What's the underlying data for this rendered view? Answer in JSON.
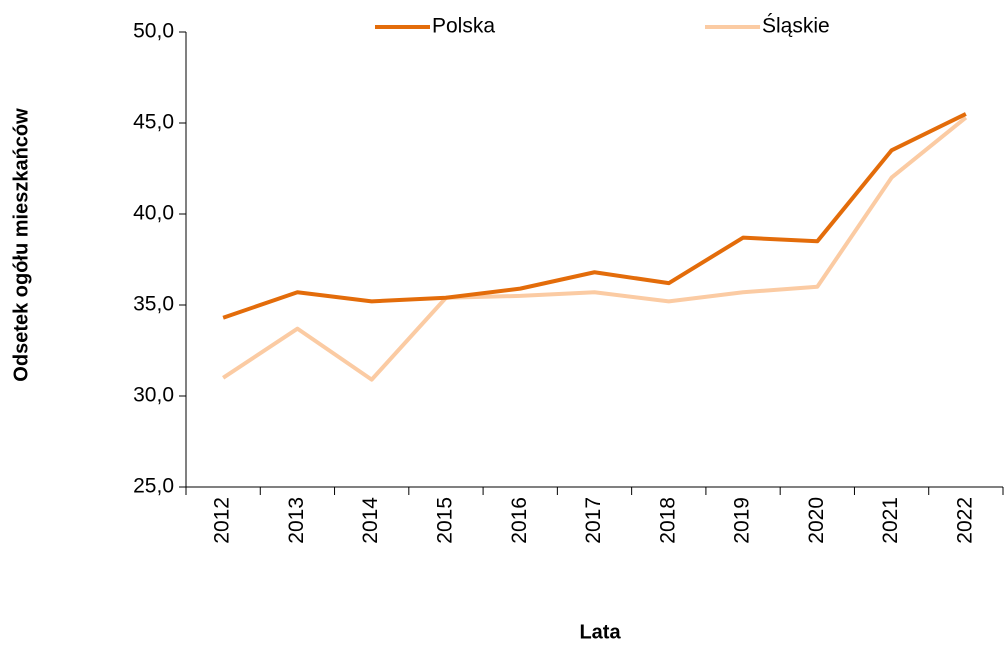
{
  "chart_data": {
    "type": "line",
    "categories": [
      "2012",
      "2013",
      "2014",
      "2015",
      "2016",
      "2017",
      "2018",
      "2019",
      "2020",
      "2021",
      "2022"
    ],
    "series": [
      {
        "name": "Polska",
        "color": "#e36c0a",
        "values": [
          34.3,
          35.7,
          35.2,
          35.4,
          35.9,
          36.8,
          36.2,
          38.7,
          38.5,
          43.5,
          45.5
        ]
      },
      {
        "name": "Śląskie",
        "color": "#fbcba3",
        "values": [
          31.0,
          33.7,
          30.9,
          35.4,
          35.5,
          35.7,
          35.2,
          35.7,
          36.0,
          42.0,
          45.3
        ]
      }
    ],
    "ylabel": "Odsetek ogółu mieszkańców",
    "xlabel": "Lata",
    "ylim": [
      25,
      50
    ],
    "yticks": [
      {
        "value": 25,
        "label": "25,0"
      },
      {
        "value": 30,
        "label": "30,0"
      },
      {
        "value": 35,
        "label": "35,0"
      },
      {
        "value": 40,
        "label": "40,0"
      },
      {
        "value": 45,
        "label": "45,0"
      },
      {
        "value": 50,
        "label": "50,0"
      }
    ],
    "legend": "top"
  }
}
